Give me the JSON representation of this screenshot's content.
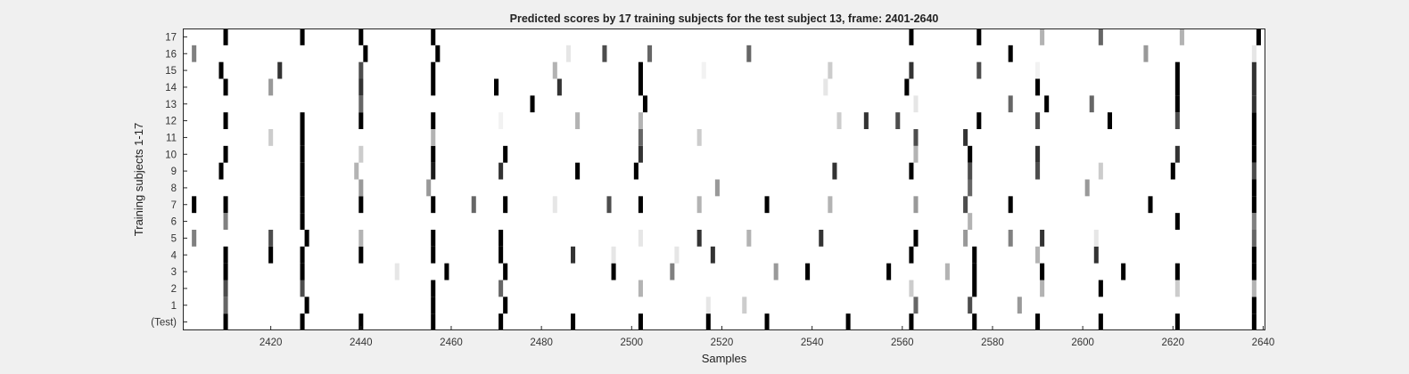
{
  "chart_data": {
    "type": "heatmap",
    "title": "Predicted scores by 17 training subjects for the test subject 13, frame: 2401-2640",
    "xlabel": "Samples",
    "ylabel": "Training subjects 1-17",
    "xlim": [
      2401,
      2640
    ],
    "x_ticks": [
      2420,
      2440,
      2460,
      2480,
      2500,
      2520,
      2540,
      2560,
      2580,
      2600,
      2620,
      2640
    ],
    "rows": [
      "(Test)",
      "1",
      "2",
      "3",
      "4",
      "5",
      "6",
      "7",
      "8",
      "9",
      "10",
      "11",
      "12",
      "13",
      "14",
      "15",
      "16",
      "17"
    ],
    "grid": false,
    "colormap": "gray (1 = black, 0 = white)",
    "events": [
      {
        "row": "(Test)",
        "marks": [
          [
            2410,
            1
          ],
          [
            2427,
            1
          ],
          [
            2440,
            1
          ],
          [
            2456,
            1
          ],
          [
            2471,
            1
          ],
          [
            2487,
            1
          ],
          [
            2502,
            1
          ],
          [
            2517,
            1
          ],
          [
            2530,
            1
          ],
          [
            2548,
            1
          ],
          [
            2562,
            1
          ],
          [
            2576,
            1
          ],
          [
            2590,
            1
          ],
          [
            2604,
            1
          ],
          [
            2621,
            1
          ],
          [
            2638,
            1
          ]
        ]
      },
      {
        "row": "1",
        "marks": [
          [
            2410,
            0.6
          ],
          [
            2428,
            1
          ],
          [
            2456,
            1
          ],
          [
            2472,
            1
          ],
          [
            2517,
            0.1
          ],
          [
            2525,
            0.2
          ],
          [
            2563,
            0.6
          ],
          [
            2575,
            0.7
          ],
          [
            2586,
            0.4
          ],
          [
            2638,
            1
          ]
        ]
      },
      {
        "row": "2",
        "marks": [
          [
            2410,
            0.7
          ],
          [
            2427,
            0.7
          ],
          [
            2456,
            1
          ],
          [
            2471,
            0.6
          ],
          [
            2502,
            0.3
          ],
          [
            2562,
            0.2
          ],
          [
            2576,
            1
          ],
          [
            2591,
            0.3
          ],
          [
            2604,
            1
          ],
          [
            2621,
            0.2
          ],
          [
            2638,
            0.3
          ]
        ]
      },
      {
        "row": "3",
        "marks": [
          [
            2410,
            1
          ],
          [
            2427,
            1
          ],
          [
            2448,
            0.1
          ],
          [
            2459,
            1
          ],
          [
            2472,
            1
          ],
          [
            2496,
            1
          ],
          [
            2509,
            0.5
          ],
          [
            2532,
            0.4
          ],
          [
            2539,
            1
          ],
          [
            2557,
            1
          ],
          [
            2570,
            0.3
          ],
          [
            2576,
            1
          ],
          [
            2591,
            1
          ],
          [
            2609,
            1
          ],
          [
            2621,
            1
          ],
          [
            2638,
            1
          ]
        ]
      },
      {
        "row": "4",
        "marks": [
          [
            2410,
            1
          ],
          [
            2420,
            1
          ],
          [
            2427,
            1
          ],
          [
            2440,
            1
          ],
          [
            2456,
            1
          ],
          [
            2471,
            1
          ],
          [
            2487,
            0.8
          ],
          [
            2496,
            0.1
          ],
          [
            2510,
            0.1
          ],
          [
            2518,
            0.8
          ],
          [
            2562,
            1
          ],
          [
            2576,
            1
          ],
          [
            2590,
            0.3
          ],
          [
            2603,
            0.8
          ],
          [
            2638,
            1
          ]
        ]
      },
      {
        "row": "5",
        "marks": [
          [
            2403,
            0.5
          ],
          [
            2420,
            0.7
          ],
          [
            2428,
            1
          ],
          [
            2440,
            0.3
          ],
          [
            2456,
            1
          ],
          [
            2471,
            1
          ],
          [
            2502,
            0.1
          ],
          [
            2515,
            0.8
          ],
          [
            2526,
            0.3
          ],
          [
            2542,
            0.8
          ],
          [
            2563,
            1
          ],
          [
            2574,
            0.4
          ],
          [
            2584,
            0.5
          ],
          [
            2591,
            0.8
          ],
          [
            2603,
            0.1
          ],
          [
            2638,
            0.6
          ]
        ]
      },
      {
        "row": "6",
        "marks": [
          [
            2410,
            0.5
          ],
          [
            2427,
            1
          ],
          [
            2575,
            0.3
          ],
          [
            2621,
            1
          ],
          [
            2638,
            0.5
          ]
        ]
      },
      {
        "row": "7",
        "marks": [
          [
            2403,
            1
          ],
          [
            2410,
            1
          ],
          [
            2427,
            1
          ],
          [
            2440,
            1
          ],
          [
            2456,
            1
          ],
          [
            2465,
            0.6
          ],
          [
            2472,
            1
          ],
          [
            2483,
            0.1
          ],
          [
            2495,
            0.7
          ],
          [
            2502,
            1
          ],
          [
            2515,
            0.3
          ],
          [
            2530,
            1
          ],
          [
            2544,
            0.3
          ],
          [
            2563,
            0.4
          ],
          [
            2574,
            0.7
          ],
          [
            2584,
            1
          ],
          [
            2615,
            1
          ],
          [
            2638,
            1
          ]
        ]
      },
      {
        "row": "8",
        "marks": [
          [
            2427,
            1
          ],
          [
            2440,
            0.4
          ],
          [
            2455,
            0.4
          ],
          [
            2519,
            0.4
          ],
          [
            2575,
            0.6
          ],
          [
            2601,
            0.4
          ],
          [
            2638,
            1
          ]
        ]
      },
      {
        "row": "9",
        "marks": [
          [
            2409,
            1
          ],
          [
            2427,
            1
          ],
          [
            2439,
            0.3
          ],
          [
            2456,
            0.9
          ],
          [
            2471,
            0.8
          ],
          [
            2488,
            1
          ],
          [
            2501,
            1
          ],
          [
            2545,
            0.8
          ],
          [
            2562,
            1
          ],
          [
            2575,
            0.7
          ],
          [
            2590,
            0.7
          ],
          [
            2604,
            0.2
          ],
          [
            2620,
            1
          ],
          [
            2638,
            0.7
          ]
        ]
      },
      {
        "row": "10",
        "marks": [
          [
            2410,
            1
          ],
          [
            2427,
            1
          ],
          [
            2440,
            0.2
          ],
          [
            2456,
            1
          ],
          [
            2472,
            1
          ],
          [
            2502,
            0.8
          ],
          [
            2563,
            0.3
          ],
          [
            2575,
            1
          ],
          [
            2590,
            0.8
          ],
          [
            2621,
            0.8
          ],
          [
            2638,
            1
          ]
        ]
      },
      {
        "row": "11",
        "marks": [
          [
            2420,
            0.2
          ],
          [
            2427,
            1
          ],
          [
            2456,
            0.3
          ],
          [
            2502,
            0.6
          ],
          [
            2515,
            0.2
          ],
          [
            2563,
            0.7
          ],
          [
            2574,
            0.8
          ],
          [
            2638,
            1
          ]
        ]
      },
      {
        "row": "12",
        "marks": [
          [
            2410,
            1
          ],
          [
            2427,
            1
          ],
          [
            2440,
            1
          ],
          [
            2456,
            1
          ],
          [
            2471,
            0.05
          ],
          [
            2488,
            0.3
          ],
          [
            2502,
            0.3
          ],
          [
            2546,
            0.2
          ],
          [
            2552,
            0.8
          ],
          [
            2559,
            0.7
          ],
          [
            2577,
            1
          ],
          [
            2590,
            0.7
          ],
          [
            2606,
            1
          ],
          [
            2621,
            0.7
          ],
          [
            2638,
            1
          ]
        ]
      },
      {
        "row": "13",
        "marks": [
          [
            2440,
            0.6
          ],
          [
            2478,
            1
          ],
          [
            2503,
            1
          ],
          [
            2563,
            0.1
          ],
          [
            2584,
            0.6
          ],
          [
            2592,
            1
          ],
          [
            2602,
            0.6
          ],
          [
            2621,
            1
          ],
          [
            2638,
            0.8
          ]
        ]
      },
      {
        "row": "14",
        "marks": [
          [
            2410,
            1
          ],
          [
            2420,
            0.4
          ],
          [
            2440,
            0.8
          ],
          [
            2456,
            1
          ],
          [
            2470,
            1
          ],
          [
            2484,
            0.8
          ],
          [
            2502,
            1
          ],
          [
            2543,
            0.1
          ],
          [
            2561,
            1
          ],
          [
            2590,
            1
          ],
          [
            2621,
            1
          ],
          [
            2638,
            0.8
          ]
        ]
      },
      {
        "row": "15",
        "marks": [
          [
            2409,
            1
          ],
          [
            2422,
            0.8
          ],
          [
            2440,
            0.7
          ],
          [
            2456,
            1
          ],
          [
            2483,
            0.3
          ],
          [
            2502,
            1
          ],
          [
            2516,
            0.05
          ],
          [
            2544,
            0.2
          ],
          [
            2562,
            0.8
          ],
          [
            2577,
            0.7
          ],
          [
            2590,
            0.05
          ],
          [
            2621,
            1
          ],
          [
            2638,
            0.8
          ]
        ]
      },
      {
        "row": "16",
        "marks": [
          [
            2403,
            0.5
          ],
          [
            2441,
            1
          ],
          [
            2457,
            1
          ],
          [
            2486,
            0.1
          ],
          [
            2494,
            0.7
          ],
          [
            2504,
            0.6
          ],
          [
            2526,
            0.6
          ],
          [
            2584,
            1
          ],
          [
            2614,
            0.4
          ],
          [
            2638,
            0.1
          ]
        ]
      },
      {
        "row": "17",
        "marks": [
          [
            2410,
            1
          ],
          [
            2427,
            1
          ],
          [
            2440,
            1
          ],
          [
            2456,
            1
          ],
          [
            2562,
            1
          ],
          [
            2577,
            1
          ],
          [
            2591,
            0.3
          ],
          [
            2604,
            0.6
          ],
          [
            2622,
            0.3
          ],
          [
            2639,
            1
          ]
        ]
      }
    ]
  }
}
